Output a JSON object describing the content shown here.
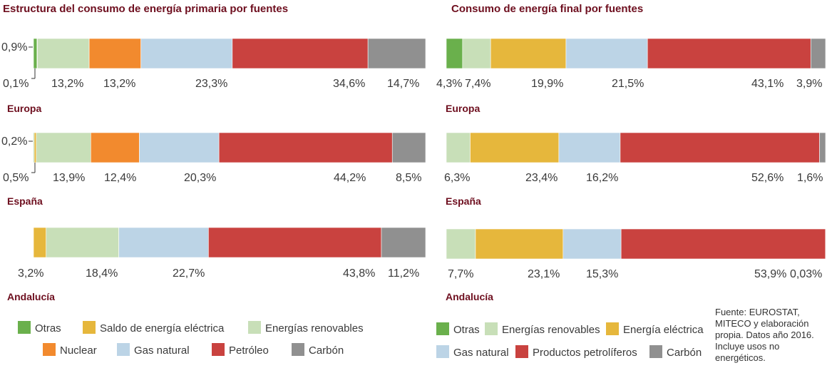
{
  "colors": {
    "otras": "#6ab04c",
    "saldo": "#e6b73c",
    "renovables": "#c8dfb8",
    "nuclear": "#f28a2e",
    "gas": "#bcd4e6",
    "petroleo": "#c9423f",
    "carbon": "#909090"
  },
  "chart_data": [
    {
      "type": "bar",
      "orientation": "horizontal-stacked",
      "title": "Estructura del consumo de energía primaria por fuentes",
      "categories": [
        "Europa",
        "España",
        "Andalucía"
      ],
      "series": [
        {
          "name": "Otras",
          "color_key": "otras",
          "values": [
            0.9,
            0.2,
            null
          ]
        },
        {
          "name": "Saldo de energía eléctrica",
          "color_key": "saldo",
          "values": [
            0.1,
            0.5,
            3.2
          ]
        },
        {
          "name": "Energías renovables",
          "color_key": "renovables",
          "values": [
            13.2,
            13.9,
            18.4
          ]
        },
        {
          "name": "Nuclear",
          "color_key": "nuclear",
          "values": [
            13.2,
            12.4,
            null
          ]
        },
        {
          "name": "Gas natural",
          "color_key": "gas",
          "values": [
            23.3,
            20.3,
            22.7
          ]
        },
        {
          "name": "Petróleo",
          "color_key": "petroleo",
          "values": [
            34.6,
            44.2,
            43.8
          ]
        },
        {
          "name": "Carbón",
          "color_key": "carbon",
          "values": [
            14.7,
            8.5,
            11.2
          ]
        }
      ],
      "labels": [
        [
          {
            "text": "0,1%"
          },
          {
            "text": "13,2%"
          },
          {
            "text": "13,2%"
          },
          {
            "text": "23,3%"
          },
          {
            "text": "34,6%"
          },
          {
            "text": "14,7%"
          }
        ],
        [
          {
            "text": "0,5%"
          },
          {
            "text": "13,9%"
          },
          {
            "text": "12,4%"
          },
          {
            "text": "20,3%"
          },
          {
            "text": "44,2%"
          },
          {
            "text": "8,5%"
          }
        ],
        [
          {
            "text": "3,2%"
          },
          {
            "text": "18,4%"
          },
          {
            "text": "22,7%"
          },
          {
            "text": "43,8%"
          },
          {
            "text": "11,2%"
          }
        ]
      ],
      "side_labels": [
        "0,9%",
        "0,2%"
      ],
      "legend": [
        [
          "Otras",
          "Saldo de energía eléctrica",
          "Energías renovables"
        ],
        [
          "Nuclear",
          "Gas natural",
          "Petróleo",
          "Carbón"
        ]
      ]
    },
    {
      "type": "bar",
      "orientation": "horizontal-stacked",
      "title": "Consumo de energía final por fuentes",
      "categories": [
        "Europa",
        "España",
        "Andalucía"
      ],
      "series": [
        {
          "name": "Otras",
          "color_key": "otras",
          "values": [
            4.3,
            null,
            null
          ]
        },
        {
          "name": "Energías renovables",
          "color_key": "renovables",
          "values": [
            7.4,
            6.3,
            7.7
          ]
        },
        {
          "name": "Energía eléctrica",
          "color_key": "saldo",
          "values": [
            19.9,
            23.4,
            23.1
          ]
        },
        {
          "name": "Gas natural",
          "color_key": "gas",
          "values": [
            21.5,
            16.2,
            15.3
          ]
        },
        {
          "name": "Productos petrolíferos",
          "color_key": "petroleo",
          "values": [
            43.1,
            52.6,
            53.9
          ]
        },
        {
          "name": "Carbón",
          "color_key": "carbon",
          "values": [
            3.9,
            1.6,
            0.03
          ]
        }
      ],
      "labels": [
        [
          {
            "text": "4,3%"
          },
          {
            "text": "7,4%"
          },
          {
            "text": "19,9%"
          },
          {
            "text": "21,5%"
          },
          {
            "text": "43,1%"
          },
          {
            "text": "3,9%"
          }
        ],
        [
          {
            "text": "6,3%"
          },
          {
            "text": "23,4%"
          },
          {
            "text": "16,2%"
          },
          {
            "text": "52,6%"
          },
          {
            "text": "1,6%"
          }
        ],
        [
          {
            "text": "7,7%"
          },
          {
            "text": "23,1%"
          },
          {
            "text": "15,3%"
          },
          {
            "text": "53,9%"
          },
          {
            "text": "0,03%"
          }
        ]
      ],
      "legend": [
        [
          "Otras",
          "Energías renovables",
          "Energía eléctrica"
        ],
        [
          "Gas natural",
          "Productos petrolíferos",
          "Carbón"
        ]
      ]
    }
  ],
  "source": "Fuente: EUROSTAT, MITECO y elaboración propia. Datos año 2016. Incluye usos no energéticos."
}
